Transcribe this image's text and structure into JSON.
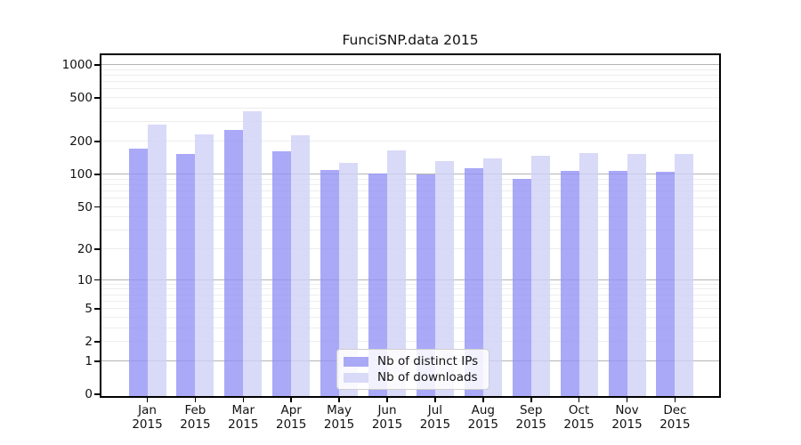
{
  "title": "FunciSNP.data 2015",
  "chart_data": {
    "type": "bar",
    "title": "FunciSNP.data 2015",
    "categories": [
      "Jan",
      "Feb",
      "Mar",
      "Apr",
      "May",
      "Jun",
      "Jul",
      "Aug",
      "Sep",
      "Oct",
      "Nov",
      "Dec"
    ],
    "x_year_label": "2015",
    "series": [
      {
        "name": "Nb of distinct IPs",
        "legend_color": "#a9a9f6",
        "bar_fill": "rgba(145,145,246,0.78)",
        "values": [
          173,
          153,
          257,
          162,
          110,
          102,
          99,
          115,
          91,
          108,
          107,
          106
        ]
      },
      {
        "name": "Nb of downloads",
        "legend_color": "#d9d9f8",
        "bar_fill": "rgba(208,208,246,0.80)",
        "values": [
          285,
          232,
          380,
          228,
          127,
          167,
          132,
          139,
          149,
          157,
          153,
          155
        ]
      }
    ],
    "y_scale": "log10(1+x)",
    "y_ticks": [
      1000,
      500,
      200,
      100,
      50,
      20,
      10,
      5,
      2,
      1,
      0
    ],
    "y_range": [
      0,
      1200
    ],
    "grid_major": [
      1,
      10,
      100,
      1000
    ],
    "grid_minor": [
      2,
      3,
      4,
      5,
      6,
      7,
      8,
      9,
      20,
      30,
      40,
      50,
      60,
      70,
      80,
      90,
      200,
      300,
      400,
      500,
      600,
      700,
      800,
      900
    ],
    "legend_position": "lower center",
    "colors": {
      "axis": "#000000",
      "grid_major": "#b4b4b4",
      "grid_minor": "#ededed",
      "background": "#ffffff"
    }
  }
}
